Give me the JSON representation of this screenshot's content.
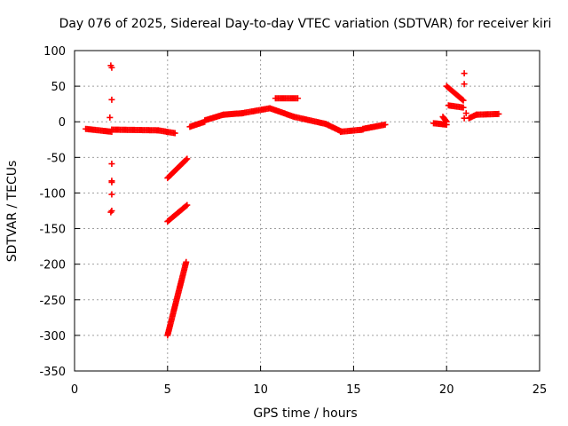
{
  "chart_data": {
    "type": "scatter",
    "title": "Day 076 of 2025, Sidereal Day-to-day VTEC variation (SDTVAR) for receiver kiri",
    "xlabel": "GPS time / hours",
    "ylabel": "SDTVAR / TECUs",
    "xlim": [
      0,
      25
    ],
    "ylim": [
      -350,
      100
    ],
    "xticks": [
      0,
      5,
      10,
      15,
      20,
      25
    ],
    "yticks": [
      100,
      50,
      0,
      -50,
      -100,
      -150,
      -200,
      -250,
      -300,
      -350
    ],
    "grid": true,
    "marker": "+",
    "color": "#ff0000",
    "segments": [
      {
        "x": [
          0.6,
          2.0
        ],
        "y": [
          -10,
          -14
        ]
      },
      {
        "x": [
          2.0,
          4.5
        ],
        "y": [
          -11,
          -12
        ]
      },
      {
        "x": [
          4.5,
          5.4
        ],
        "y": [
          -12,
          -16
        ]
      },
      {
        "x": [
          5.0,
          6.05
        ],
        "y": [
          -79,
          -52
        ]
      },
      {
        "x": [
          5.0,
          6.05
        ],
        "y": [
          -140,
          -117
        ]
      },
      {
        "x": [
          5.0,
          6.0
        ],
        "y": [
          -300,
          -197
        ]
      },
      {
        "x": [
          6.2,
          7.0
        ],
        "y": [
          -7,
          0
        ]
      },
      {
        "x": [
          7.0,
          8.0
        ],
        "y": [
          2,
          10
        ]
      },
      {
        "x": [
          8.0,
          9.0
        ],
        "y": [
          10,
          12
        ]
      },
      {
        "x": [
          9.0,
          10.5
        ],
        "y": [
          12,
          19
        ]
      },
      {
        "x": [
          10.5,
          11.8
        ],
        "y": [
          19,
          7
        ]
      },
      {
        "x": [
          10.8,
          12.0
        ],
        "y": [
          33,
          33
        ]
      },
      {
        "x": [
          11.8,
          13.5
        ],
        "y": [
          7,
          -3
        ]
      },
      {
        "x": [
          13.5,
          14.3
        ],
        "y": [
          -3,
          -13
        ]
      },
      {
        "x": [
          14.3,
          15.5
        ],
        "y": [
          -14,
          -11
        ]
      },
      {
        "x": [
          15.5,
          16.7
        ],
        "y": [
          -10,
          -4
        ]
      },
      {
        "x": [
          19.3,
          20.0
        ],
        "y": [
          -2,
          -4
        ]
      },
      {
        "x": [
          19.8,
          20.0
        ],
        "y": [
          7,
          0
        ]
      },
      {
        "x": [
          20.0,
          20.9
        ],
        "y": [
          50,
          30
        ]
      },
      {
        "x": [
          20.1,
          20.9
        ],
        "y": [
          23,
          20
        ]
      },
      {
        "x": [
          21.2,
          21.6
        ],
        "y": [
          5,
          10
        ]
      },
      {
        "x": [
          21.6,
          22.8
        ],
        "y": [
          10,
          11
        ]
      }
    ],
    "points": [
      {
        "x": 1.95,
        "y": 79
      },
      {
        "x": 2.0,
        "y": 76
      },
      {
        "x": 2.0,
        "y": 31
      },
      {
        "x": 1.9,
        "y": 6
      },
      {
        "x": 2.0,
        "y": -59
      },
      {
        "x": 2.0,
        "y": -83
      },
      {
        "x": 2.0,
        "y": -85
      },
      {
        "x": 2.0,
        "y": -102
      },
      {
        "x": 2.0,
        "y": -125
      },
      {
        "x": 1.95,
        "y": -127
      },
      {
        "x": 20.95,
        "y": 68
      },
      {
        "x": 20.95,
        "y": 53
      },
      {
        "x": 20.95,
        "y": 5
      },
      {
        "x": 21.05,
        "y": 12
      }
    ]
  }
}
